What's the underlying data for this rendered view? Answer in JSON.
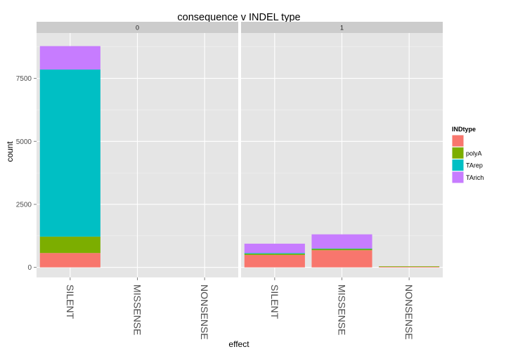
{
  "chart_data": {
    "type": "bar",
    "stacked": true,
    "faceted": true,
    "title": "consequence v INDEL type",
    "xlabel": "effect",
    "ylabel": "count",
    "ylim": [
      -400,
      9300
    ],
    "yticks": [
      0,
      2500,
      5000,
      7500
    ],
    "ytick_labels": [
      "0",
      "2500",
      "5000",
      "7500"
    ],
    "categories": [
      "SILENT",
      "MISSENSE",
      "NONSENSE"
    ],
    "legend": {
      "title": "INDtype",
      "placement": "right",
      "entries": [
        {
          "label": "",
          "color": "#F8766D"
        },
        {
          "label": "polyA",
          "color": "#7CAE00"
        },
        {
          "label": "TArep",
          "color": "#00BFC4"
        },
        {
          "label": "TArich",
          "color": "#C77CFF"
        }
      ]
    },
    "panels": [
      {
        "label": "0",
        "series": [
          {
            "color": "#F8766D",
            "values": [
              570,
              0,
              0
            ]
          },
          {
            "name": "polyA",
            "color": "#7CAE00",
            "values": [
              650,
              0,
              0
            ]
          },
          {
            "name": "TArep",
            "color": "#00BFC4",
            "values": [
              6630,
              0,
              0
            ]
          },
          {
            "name": "TArich",
            "color": "#C77CFF",
            "values": [
              930,
              0,
              0
            ]
          }
        ]
      },
      {
        "label": "1",
        "series": [
          {
            "color": "#F8766D",
            "values": [
              490,
              680,
              20
            ]
          },
          {
            "name": "polyA",
            "color": "#7CAE00",
            "values": [
              50,
              50,
              20
            ]
          },
          {
            "name": "TArep",
            "color": "#00BFC4",
            "values": [
              30,
              20,
              0
            ]
          },
          {
            "name": "TArich",
            "color": "#C77CFF",
            "values": [
              370,
              560,
              0
            ]
          }
        ]
      }
    ],
    "grid": true
  }
}
